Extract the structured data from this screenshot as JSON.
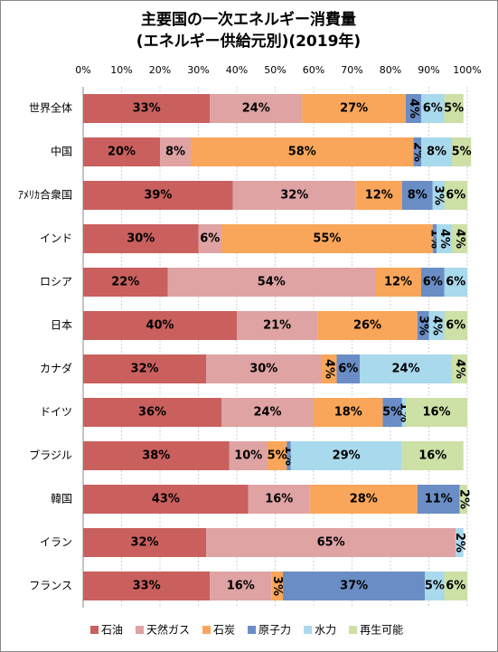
{
  "chart_data": {
    "type": "stacked-bar-horizontal",
    "title": "主要国の一次エネルギー消費量",
    "subtitle": "(エネルギー供給元別)(2019年)",
    "categories": [
      "世界全体",
      "中国",
      "ｱﾒﾘｶ合衆国",
      "インド",
      "ロシア",
      "日本",
      "カナダ",
      "ドイツ",
      "ブラジル",
      "韓国",
      "イラン",
      "フランス"
    ],
    "series": [
      {
        "name": "石油",
        "color": "#c9605e",
        "values": [
          33,
          20,
          39,
          30,
          22,
          40,
          32,
          36,
          38,
          43,
          32,
          33
        ],
        "value_labels": [
          "33%",
          "20%",
          "39%",
          "30%",
          "22%",
          "40%",
          "32%",
          "36%",
          "38%",
          "43%",
          "32%",
          "33%"
        ]
      },
      {
        "name": "天然ガス",
        "color": "#dfa3a3",
        "values": [
          24,
          8,
          32,
          6,
          54,
          21,
          30,
          24,
          10,
          16,
          65,
          16
        ],
        "value_labels": [
          "24%",
          "8%",
          "32%",
          "6%",
          "54%",
          "21%",
          "30%",
          "24%",
          "10%",
          "16%",
          "65%",
          "16%"
        ]
      },
      {
        "name": "石炭",
        "color": "#f9a65a",
        "values": [
          27,
          58,
          12,
          55,
          12,
          26,
          4,
          18,
          5,
          28,
          null,
          3
        ],
        "value_labels": [
          "27%",
          "58%",
          "12%",
          "55%",
          "12%",
          "26%",
          "4%",
          "18%",
          "5%",
          "28%",
          null,
          "3%"
        ]
      },
      {
        "name": "原子力",
        "color": "#6a8dc5",
        "values": [
          4,
          2,
          8,
          1,
          6,
          3,
          6,
          5,
          1,
          11,
          null,
          37
        ],
        "value_labels": [
          "4%",
          "2%",
          "8%",
          "1%",
          "6%",
          "3%",
          "6%",
          "5%",
          "1%",
          "11%",
          null,
          "37%"
        ]
      },
      {
        "name": "水力",
        "color": "#a9d9ec",
        "values": [
          6,
          8,
          3,
          4,
          6,
          4,
          24,
          1,
          29,
          null,
          2,
          5
        ],
        "value_labels": [
          "6%",
          "8%",
          "3%",
          "4%",
          "6%",
          "4%",
          "24%",
          "1%",
          "29%",
          null,
          "2%",
          "5%"
        ]
      },
      {
        "name": "再生可能",
        "color": "#cde0a6",
        "values": [
          5,
          5,
          6,
          4,
          null,
          6,
          4,
          16,
          16,
          2,
          null,
          6
        ],
        "value_labels": [
          "5%",
          "5%",
          "6%",
          "4%",
          null,
          "6%",
          "4%",
          "16%",
          "16%",
          "2%",
          null,
          "6%"
        ]
      }
    ],
    "xlim": [
      0,
      100
    ],
    "xticks": [
      {
        "value": 0,
        "label": "0%"
      },
      {
        "value": 10,
        "label": "10%"
      },
      {
        "value": 20,
        "label": "20%"
      },
      {
        "value": 30,
        "label": "30%"
      },
      {
        "value": 40,
        "label": "40%"
      },
      {
        "value": 50,
        "label": "50%"
      },
      {
        "value": 60,
        "label": "60%"
      },
      {
        "value": 70,
        "label": "70%"
      },
      {
        "value": 80,
        "label": "80%"
      },
      {
        "value": 90,
        "label": "90%"
      },
      {
        "value": 100,
        "label": "100%"
      }
    ],
    "grid": true,
    "legend": "bottom"
  }
}
